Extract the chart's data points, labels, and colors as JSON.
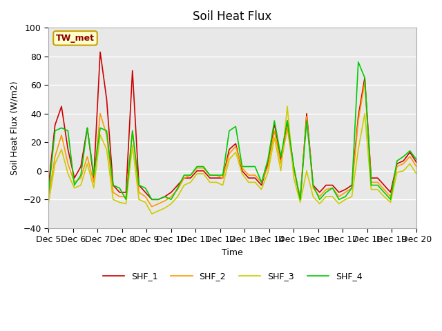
{
  "title": "Soil Heat Flux",
  "xlabel": "Time",
  "ylabel": "Soil Heat Flux (W/m2)",
  "ylim": [
    -40,
    100
  ],
  "background_color": "#ffffff",
  "plot_bg_color": "#e8e8e8",
  "grid_color": "#ffffff",
  "annotation_text": "TW_met",
  "annotation_color": "#8b0000",
  "annotation_bg": "#ffffcc",
  "annotation_border": "#c8a000",
  "x_tick_labels": [
    "Dec 5",
    "Dec 6",
    "Dec 7",
    "Dec 8",
    "Dec 9",
    "Dec 10",
    "Dec 11",
    "Dec 12",
    "Dec 13",
    "Dec 14",
    "Dec 15",
    "Dec 16",
    "Dec 17",
    "Dec 18",
    "Dec 19",
    "Dec 20"
  ],
  "x_tick_positions": [
    5,
    6,
    7,
    8,
    9,
    10,
    11,
    12,
    13,
    14,
    15,
    16,
    17,
    18,
    19,
    20
  ],
  "colors": {
    "SHF_1": "#cc0000",
    "SHF_2": "#ff9900",
    "SHF_3": "#cccc00",
    "SHF_4": "#00cc00"
  },
  "SHF_1": [
    -10,
    32,
    45,
    15,
    -5,
    3,
    30,
    -5,
    83,
    50,
    -10,
    -15,
    -15,
    70,
    -10,
    -15,
    -20,
    -20,
    -18,
    -15,
    -10,
    -5,
    -5,
    0,
    0,
    -5,
    -5,
    -5,
    15,
    19,
    0,
    -5,
    -5,
    -10,
    5,
    33,
    8,
    35,
    2,
    -20,
    40,
    -10,
    -15,
    -10,
    -10,
    -15,
    -13,
    -10,
    38,
    65,
    -5,
    -5,
    -10,
    -15,
    5,
    7,
    13,
    6
  ],
  "SHF_2": [
    -18,
    10,
    25,
    5,
    -8,
    -5,
    10,
    -8,
    40,
    25,
    -15,
    -18,
    -18,
    28,
    -15,
    -18,
    -25,
    -23,
    -21,
    -18,
    -13,
    -5,
    -3,
    2,
    2,
    -3,
    -3,
    -5,
    12,
    17,
    2,
    -3,
    -3,
    -8,
    3,
    28,
    5,
    30,
    0,
    -18,
    38,
    -12,
    -18,
    -13,
    -12,
    -18,
    -15,
    -12,
    35,
    62,
    -8,
    -8,
    -13,
    -18,
    3,
    5,
    10,
    3
  ],
  "SHF_3": [
    -22,
    5,
    15,
    -2,
    -12,
    -10,
    5,
    -12,
    25,
    15,
    -20,
    -22,
    -23,
    18,
    -20,
    -22,
    -30,
    -28,
    -26,
    -23,
    -18,
    -10,
    -8,
    -2,
    -2,
    -8,
    -8,
    -10,
    8,
    13,
    -2,
    -8,
    -8,
    -13,
    -1,
    23,
    0,
    45,
    -5,
    -22,
    0,
    -18,
    -23,
    -18,
    -18,
    -23,
    -20,
    -18,
    15,
    40,
    -13,
    -13,
    -18,
    -22,
    -1,
    0,
    5,
    -2
  ],
  "SHF_4": [
    -15,
    28,
    30,
    28,
    -10,
    -3,
    30,
    -3,
    30,
    28,
    -10,
    -12,
    -20,
    28,
    -10,
    -12,
    -20,
    -20,
    -18,
    -20,
    -12,
    -3,
    -3,
    3,
    3,
    -3,
    -3,
    -3,
    28,
    31,
    3,
    3,
    3,
    -8,
    8,
    35,
    10,
    35,
    3,
    -20,
    35,
    -10,
    -20,
    -15,
    -12,
    -20,
    -18,
    -12,
    76,
    65,
    -10,
    -10,
    -15,
    -20,
    7,
    10,
    14,
    8
  ],
  "n_points": 58,
  "x_start": 5,
  "x_end": 20
}
